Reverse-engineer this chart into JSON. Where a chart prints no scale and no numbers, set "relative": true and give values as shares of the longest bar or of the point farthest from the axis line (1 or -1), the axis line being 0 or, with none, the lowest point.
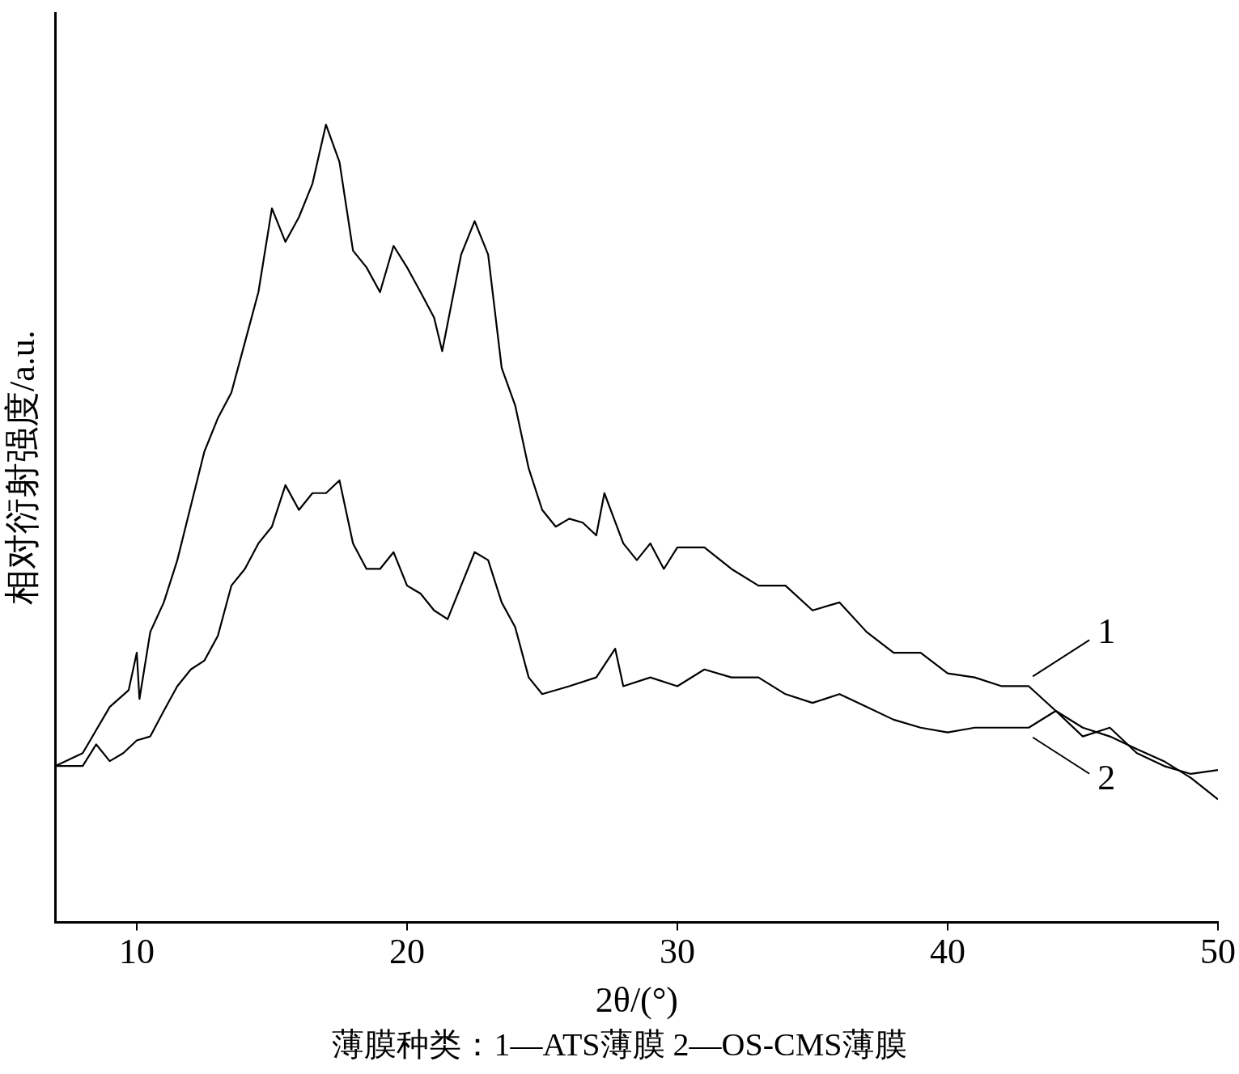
{
  "chart_data": {
    "type": "line",
    "relative": true,
    "xlabel": "2θ/(°)",
    "ylabel": "相对衍射强度/a.u.",
    "annotations": [
      "薄膜种类：1—ATS薄膜  2—OS-CMS薄膜"
    ],
    "xlim": [
      7,
      50
    ],
    "xticks": [
      10,
      20,
      30,
      40,
      50
    ],
    "grid": false,
    "legend": "right",
    "marker": "none",
    "line_style": "solid",
    "series": [
      {
        "name": "1",
        "color": "#000000",
        "x": [
          7,
          8,
          9,
          9.7,
          10,
          10.1,
          10.5,
          11,
          11.5,
          12,
          12.5,
          13,
          13.5,
          14,
          14.5,
          15,
          15.5,
          16,
          16.5,
          17,
          17.5,
          18,
          18.5,
          19,
          19.5,
          20,
          20.5,
          21,
          21.3,
          22,
          22.5,
          23,
          23.5,
          24,
          24.5,
          25,
          25.5,
          26,
          26.5,
          27,
          27.3,
          28,
          28.5,
          29,
          29.5,
          30,
          31,
          32,
          33,
          34,
          35,
          36,
          37,
          38,
          39,
          40,
          41,
          42,
          43,
          44,
          45,
          46,
          47,
          48,
          49,
          50
        ],
        "values": [
          0.196,
          0.212,
          0.27,
          0.291,
          0.338,
          0.28,
          0.364,
          0.401,
          0.454,
          0.522,
          0.59,
          0.632,
          0.664,
          0.727,
          0.79,
          0.895,
          0.853,
          0.884,
          0.926,
          1.0,
          0.953,
          0.842,
          0.821,
          0.79,
          0.848,
          0.821,
          0.79,
          0.758,
          0.716,
          0.837,
          0.879,
          0.837,
          0.695,
          0.648,
          0.569,
          0.517,
          0.496,
          0.506,
          0.501,
          0.485,
          0.538,
          0.475,
          0.454,
          0.475,
          0.443,
          0.47,
          0.47,
          0.443,
          0.422,
          0.422,
          0.391,
          0.401,
          0.364,
          0.338,
          0.338,
          0.312,
          0.307,
          0.296,
          0.296,
          0.265,
          0.244,
          0.233,
          0.217,
          0.202,
          0.181,
          0.154
        ]
      },
      {
        "name": "2",
        "color": "#000000",
        "x": [
          7,
          8,
          8.5,
          9,
          9.5,
          10,
          10.5,
          11,
          11.5,
          12,
          12.5,
          13,
          13.5,
          14,
          14.5,
          15,
          15.5,
          16,
          16.5,
          17,
          17.5,
          18,
          18.5,
          19,
          19.5,
          20,
          20.5,
          21,
          21.5,
          22,
          22.5,
          23,
          23.5,
          24,
          24.5,
          25,
          26,
          27,
          27.7,
          28,
          29,
          30,
          31,
          32,
          33,
          34,
          35,
          36,
          37,
          38,
          39,
          40,
          41,
          42,
          43,
          44,
          45,
          46,
          47,
          48,
          49,
          50
        ],
        "values": [
          0.196,
          0.196,
          0.223,
          0.202,
          0.212,
          0.228,
          0.233,
          0.265,
          0.296,
          0.317,
          0.328,
          0.359,
          0.422,
          0.443,
          0.475,
          0.496,
          0.548,
          0.517,
          0.538,
          0.538,
          0.554,
          0.475,
          0.443,
          0.443,
          0.464,
          0.422,
          0.412,
          0.391,
          0.38,
          0.422,
          0.464,
          0.454,
          0.401,
          0.37,
          0.307,
          0.286,
          0.296,
          0.307,
          0.343,
          0.296,
          0.307,
          0.296,
          0.317,
          0.307,
          0.307,
          0.286,
          0.275,
          0.286,
          0.27,
          0.254,
          0.244,
          0.238,
          0.244,
          0.244,
          0.244,
          0.265,
          0.233,
          0.244,
          0.212,
          0.196,
          0.186,
          0.191
        ]
      }
    ]
  }
}
